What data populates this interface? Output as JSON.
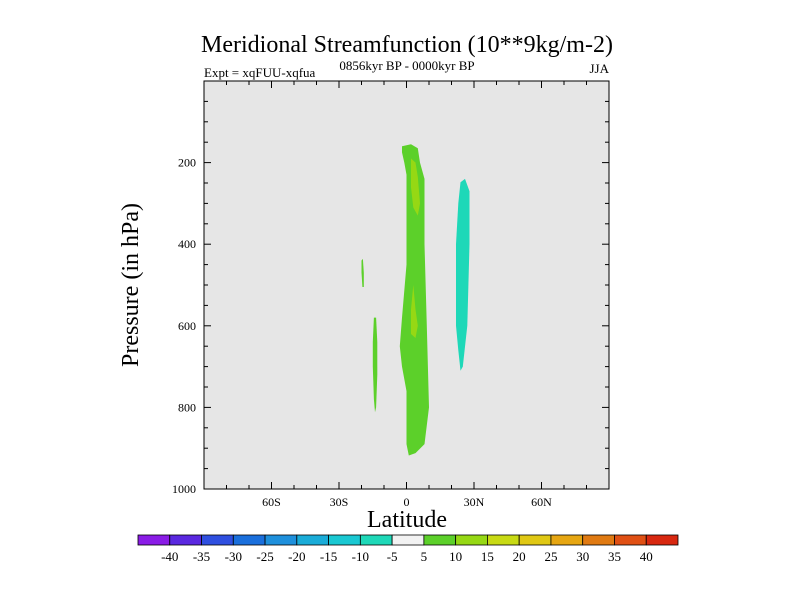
{
  "chart_data": {
    "type": "contour",
    "title": "Meridional Streamfunction (10**9kg/m-2)",
    "subtitle_left": "Expt = xqFUU-xqfua",
    "subtitle_center": "0856kyr BP - 0000kyr BP",
    "subtitle_right": "JJA",
    "xlabel": "Latitude",
    "ylabel": "Pressure (in hPa)",
    "xlim": [
      -90,
      90
    ],
    "ylim": [
      1000,
      0
    ],
    "x_ticks": [
      {
        "value": -60,
        "label": "60S"
      },
      {
        "value": -30,
        "label": "30S"
      },
      {
        "value": 0,
        "label": "0"
      },
      {
        "value": 30,
        "label": "30N"
      },
      {
        "value": 60,
        "label": "60N"
      }
    ],
    "y_ticks": [
      {
        "value": 200,
        "label": "200"
      },
      {
        "value": 400,
        "label": "400"
      },
      {
        "value": 600,
        "label": "600"
      },
      {
        "value": 800,
        "label": "800"
      },
      {
        "value": 1000,
        "label": "1000"
      }
    ],
    "background_color": "#e6e6e6",
    "colorbar": {
      "labels": [
        "-40",
        "-35",
        "-30",
        "-25",
        "-20",
        "-15",
        "-10",
        "-5",
        "5",
        "10",
        "15",
        "20",
        "25",
        "30",
        "35",
        "40"
      ],
      "colors": [
        "#8a1ce6",
        "#5a28e0",
        "#2f4fe0",
        "#1a6fdc",
        "#1e90dc",
        "#1aacd8",
        "#1ac8d2",
        "#1ed8b8",
        "#f2f2f2",
        "#5cd02a",
        "#96d814",
        "#c8da14",
        "#e0c814",
        "#e6a612",
        "#e07a12",
        "#e05014",
        "#d82810"
      ]
    },
    "contour_regions": [
      {
        "name": "positive-5-10-equatorial-cell",
        "color": "#5cd02a",
        "points": [
          [
            -2,
            160
          ],
          [
            2,
            155
          ],
          [
            5,
            165
          ],
          [
            6,
            200
          ],
          [
            8,
            240
          ],
          [
            8,
            400
          ],
          [
            9,
            600
          ],
          [
            10,
            800
          ],
          [
            8,
            890
          ],
          [
            4,
            912
          ],
          [
            1,
            918
          ],
          [
            0,
            890
          ],
          [
            0,
            760
          ],
          [
            -2,
            700
          ],
          [
            -3,
            650
          ],
          [
            -2,
            580
          ],
          [
            0,
            450
          ],
          [
            0,
            300
          ],
          [
            0,
            230
          ],
          [
            -1,
            200
          ],
          [
            -2,
            175
          ]
        ]
      },
      {
        "name": "positive-10-15-core-upper",
        "color": "#96d814",
        "points": [
          [
            2,
            190
          ],
          [
            4,
            200
          ],
          [
            5,
            235
          ],
          [
            6,
            300
          ],
          [
            5,
            330
          ],
          [
            3,
            310
          ],
          [
            2,
            260
          ]
        ]
      },
      {
        "name": "positive-10-15-core-middle",
        "color": "#96d814",
        "points": [
          [
            3,
            500
          ],
          [
            4,
            560
          ],
          [
            5,
            600
          ],
          [
            4,
            630
          ],
          [
            2,
            620
          ],
          [
            2,
            560
          ]
        ]
      },
      {
        "name": "negative-5-10-northern-cell",
        "color": "#1ed8b8",
        "points": [
          [
            24,
            248
          ],
          [
            26,
            240
          ],
          [
            28,
            270
          ],
          [
            28,
            400
          ],
          [
            27,
            600
          ],
          [
            25,
            700
          ],
          [
            24,
            710
          ],
          [
            23,
            660
          ],
          [
            22,
            600
          ],
          [
            22,
            400
          ],
          [
            23,
            300
          ]
        ]
      },
      {
        "name": "positive-5-10-southern-strip",
        "color": "#5cd02a",
        "points": [
          [
            -14.5,
            580
          ],
          [
            -13.5,
            580
          ],
          [
            -13,
            640
          ],
          [
            -13,
            720
          ],
          [
            -13.5,
            800
          ],
          [
            -14,
            812
          ],
          [
            -14.5,
            780
          ],
          [
            -15,
            700
          ],
          [
            -15,
            640
          ]
        ]
      },
      {
        "name": "positive-5-10-southern-sliver",
        "color": "#5cd02a",
        "points": [
          [
            -20,
            440
          ],
          [
            -19.4,
            436
          ],
          [
            -19,
            470
          ],
          [
            -19,
            505
          ],
          [
            -19.6,
            505
          ],
          [
            -20,
            470
          ]
        ]
      }
    ]
  }
}
